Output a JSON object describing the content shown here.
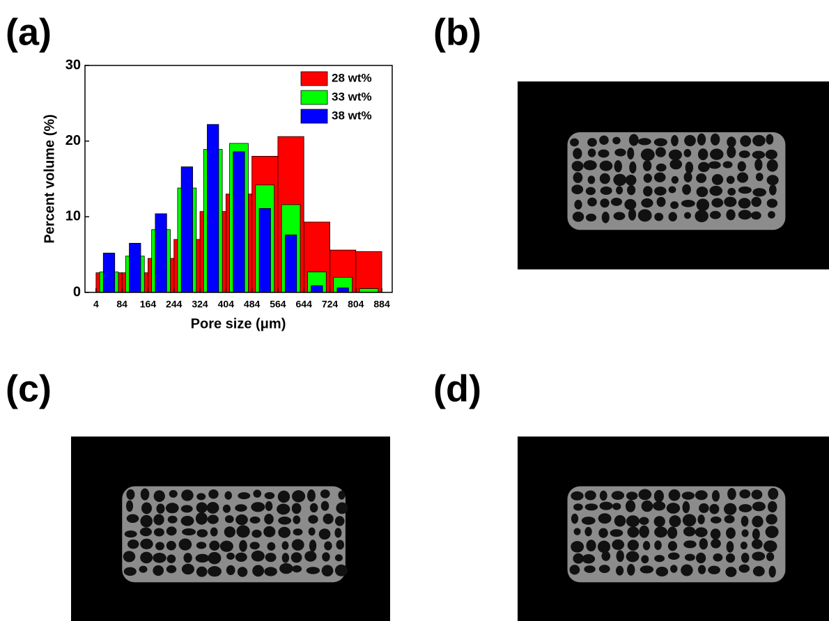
{
  "panels": [
    "(a)",
    "(b)",
    "(c)",
    "(d)"
  ],
  "chart_data": {
    "type": "histogram",
    "x_label": "Pore size (μm)",
    "y_label": "Percent volume (%)",
    "bins": [
      4,
      84,
      164,
      244,
      324,
      404,
      484,
      564,
      644,
      724,
      804,
      884
    ],
    "series": [
      {
        "name": "28 wt%",
        "color": "#ff0000",
        "values": [
          2.6,
          2.6,
          4.5,
          7.0,
          10.7,
          13.0,
          18.0,
          20.6,
          9.3,
          5.6,
          5.4
        ]
      },
      {
        "name": "33 wt%",
        "color": "#00ff00",
        "values": [
          2.7,
          4.8,
          8.3,
          13.8,
          18.9,
          19.7,
          14.2,
          11.6,
          2.7,
          2.0,
          0.5
        ]
      },
      {
        "name": "38 wt%",
        "color": "#0000ff",
        "values": [
          5.2,
          6.5,
          10.4,
          16.6,
          22.2,
          18.6,
          11.1,
          7.6,
          0.9,
          0.6,
          0
        ]
      }
    ],
    "xlim": [
      -30,
      916
    ],
    "xticks": [
      4,
      84,
      164,
      244,
      324,
      404,
      484,
      564,
      644,
      724,
      804,
      884
    ],
    "ylim": [
      0,
      30
    ],
    "yticks": [
      0,
      10,
      20,
      30
    ],
    "legend": "upper right"
  }
}
